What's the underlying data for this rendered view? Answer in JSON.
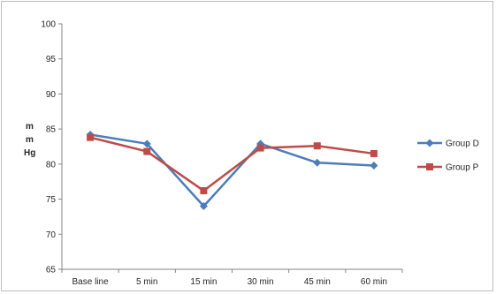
{
  "chart_data": {
    "type": "line",
    "title": "",
    "xlabel": "",
    "ylabel_lines": [
      "m",
      "m",
      "Hg"
    ],
    "categories": [
      "Base line",
      "5 min",
      "15 min",
      "30 min",
      "45 min",
      "60 min"
    ],
    "ylim": [
      65,
      100
    ],
    "yticks": [
      "65",
      "70",
      "75",
      "80",
      "85",
      "90",
      "95",
      "100"
    ],
    "grid": false,
    "legend_position": "right",
    "series": [
      {
        "name": "Group D",
        "color": "#4a7ebb",
        "marker": "diamond",
        "values": [
          84.2,
          82.9,
          74.0,
          82.9,
          80.2,
          79.8
        ]
      },
      {
        "name": "Group P",
        "color": "#be4b48",
        "marker": "square",
        "values": [
          83.8,
          81.8,
          76.2,
          82.3,
          82.6,
          81.5
        ]
      }
    ]
  }
}
